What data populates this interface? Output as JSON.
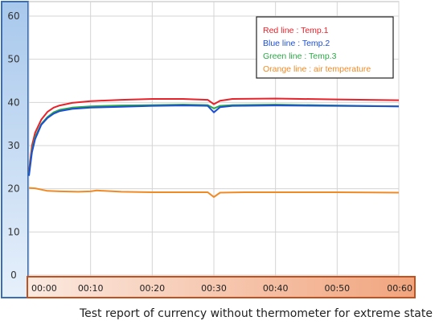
{
  "chart_data": {
    "type": "line",
    "x_tick_labels": [
      "00:00",
      "00:10",
      "00:20",
      "00:30",
      "00:40",
      "00:50",
      "00:60"
    ],
    "y_tick_labels": [
      "0",
      "10",
      "20",
      "30",
      "40",
      "50",
      "60"
    ],
    "xlim": [
      0,
      60
    ],
    "ylim": [
      0,
      60
    ],
    "grid": true,
    "legend_position": "top-right",
    "legend": [
      {
        "text": "Red line : Temp.1",
        "color": "#e8222a"
      },
      {
        "text": "Blue line : Temp.2",
        "color": "#1c4fd6"
      },
      {
        "text": "Green line : Temp.3",
        "color": "#2aa845"
      },
      {
        "text": "Orange line :  air temperature",
        "color": "#f08a24"
      }
    ],
    "series": [
      {
        "color": "#e8222a",
        "x": [
          0,
          0.5,
          1,
          2,
          3,
          4,
          5,
          7,
          10,
          15,
          20,
          25,
          29,
          30,
          31,
          33,
          40,
          50,
          60
        ],
        "y": [
          24,
          30,
          33,
          36,
          37.8,
          38.8,
          39.3,
          39.9,
          40.3,
          40.6,
          40.8,
          40.8,
          40.6,
          39.6,
          40.4,
          40.8,
          40.9,
          40.7,
          40.5
        ]
      },
      {
        "color": "#2aa845",
        "x": [
          0,
          0.5,
          1,
          2,
          3,
          4,
          5,
          7,
          10,
          15,
          20,
          25,
          29,
          30,
          31,
          33,
          40,
          50,
          60
        ],
        "y": [
          23.5,
          29,
          32,
          35,
          36.6,
          37.7,
          38.3,
          38.8,
          39.1,
          39.3,
          39.4,
          39.5,
          39.4,
          38.6,
          39.2,
          39.4,
          39.5,
          39.3,
          39.1
        ]
      },
      {
        "color": "#1c4fd6",
        "x": [
          0,
          0.5,
          1,
          2,
          3,
          4,
          5,
          7,
          10,
          15,
          20,
          25,
          29,
          30,
          31,
          33,
          40,
          50,
          60
        ],
        "y": [
          23,
          28.5,
          31.5,
          34.8,
          36.4,
          37.4,
          38,
          38.5,
          38.8,
          39.0,
          39.2,
          39.3,
          39.2,
          37.7,
          38.9,
          39.2,
          39.3,
          39.2,
          39.1
        ]
      },
      {
        "color": "#f08a24",
        "x": [
          0,
          1,
          2,
          3,
          5,
          8,
          10,
          11,
          15,
          20,
          25,
          29,
          30,
          31,
          35,
          40,
          50,
          60
        ],
        "y": [
          20.2,
          20.1,
          19.8,
          19.5,
          19.4,
          19.3,
          19.4,
          19.6,
          19.3,
          19.2,
          19.2,
          19.2,
          18.1,
          19.1,
          19.2,
          19.2,
          19.2,
          19.1
        ]
      }
    ]
  },
  "caption": "Test report of currency without thermometer for extreme state"
}
